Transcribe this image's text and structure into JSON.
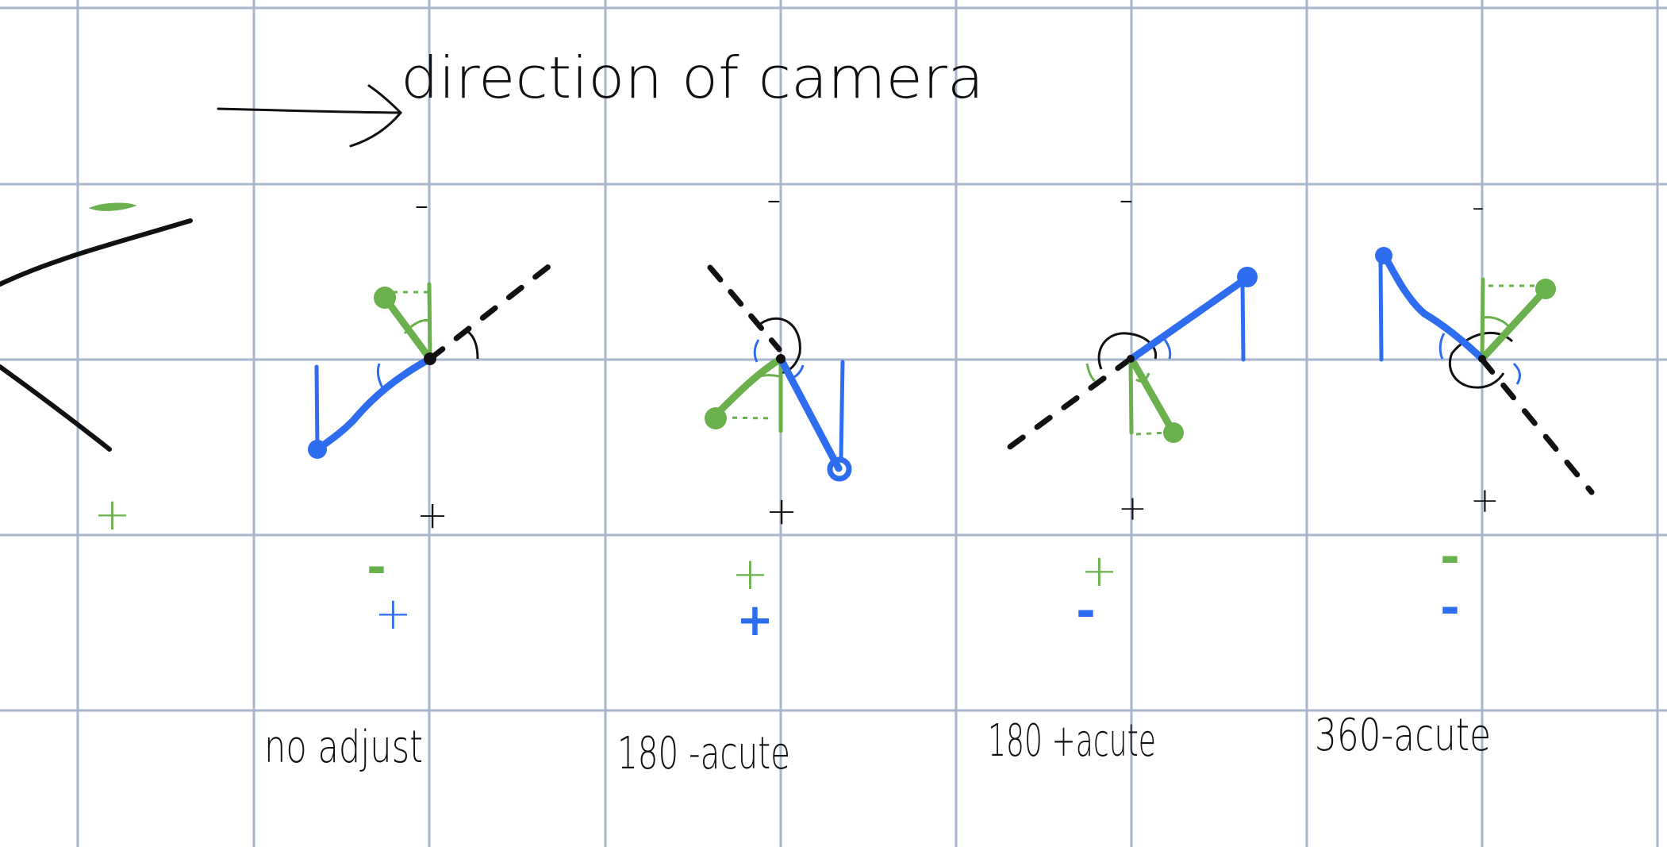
{
  "title": "direction of camera",
  "colors": {
    "grid": "#a7b6cc",
    "ink": "#111111",
    "green": "#6ab04c",
    "blue": "#2f6df0"
  },
  "camera": {
    "top_sign": "-",
    "bottom_sign": "+"
  },
  "panels": [
    {
      "id": "no-adjust",
      "caption": "no adjust",
      "top_sign": "-",
      "bottom_sign": "+",
      "green_sign": "-",
      "blue_sign": "+"
    },
    {
      "id": "180-minus-acute",
      "caption": "180 -acute",
      "top_sign": "-",
      "bottom_sign": "+",
      "green_sign": "+",
      "blue_sign": "+"
    },
    {
      "id": "180-plus-acute",
      "caption": "180 +acute",
      "top_sign": "-",
      "bottom_sign": "+",
      "green_sign": "+",
      "blue_sign": "-"
    },
    {
      "id": "360-minus-acute",
      "caption": "360-acute",
      "top_sign": "-",
      "bottom_sign": "+",
      "green_sign": "-",
      "blue_sign": "-"
    }
  ]
}
